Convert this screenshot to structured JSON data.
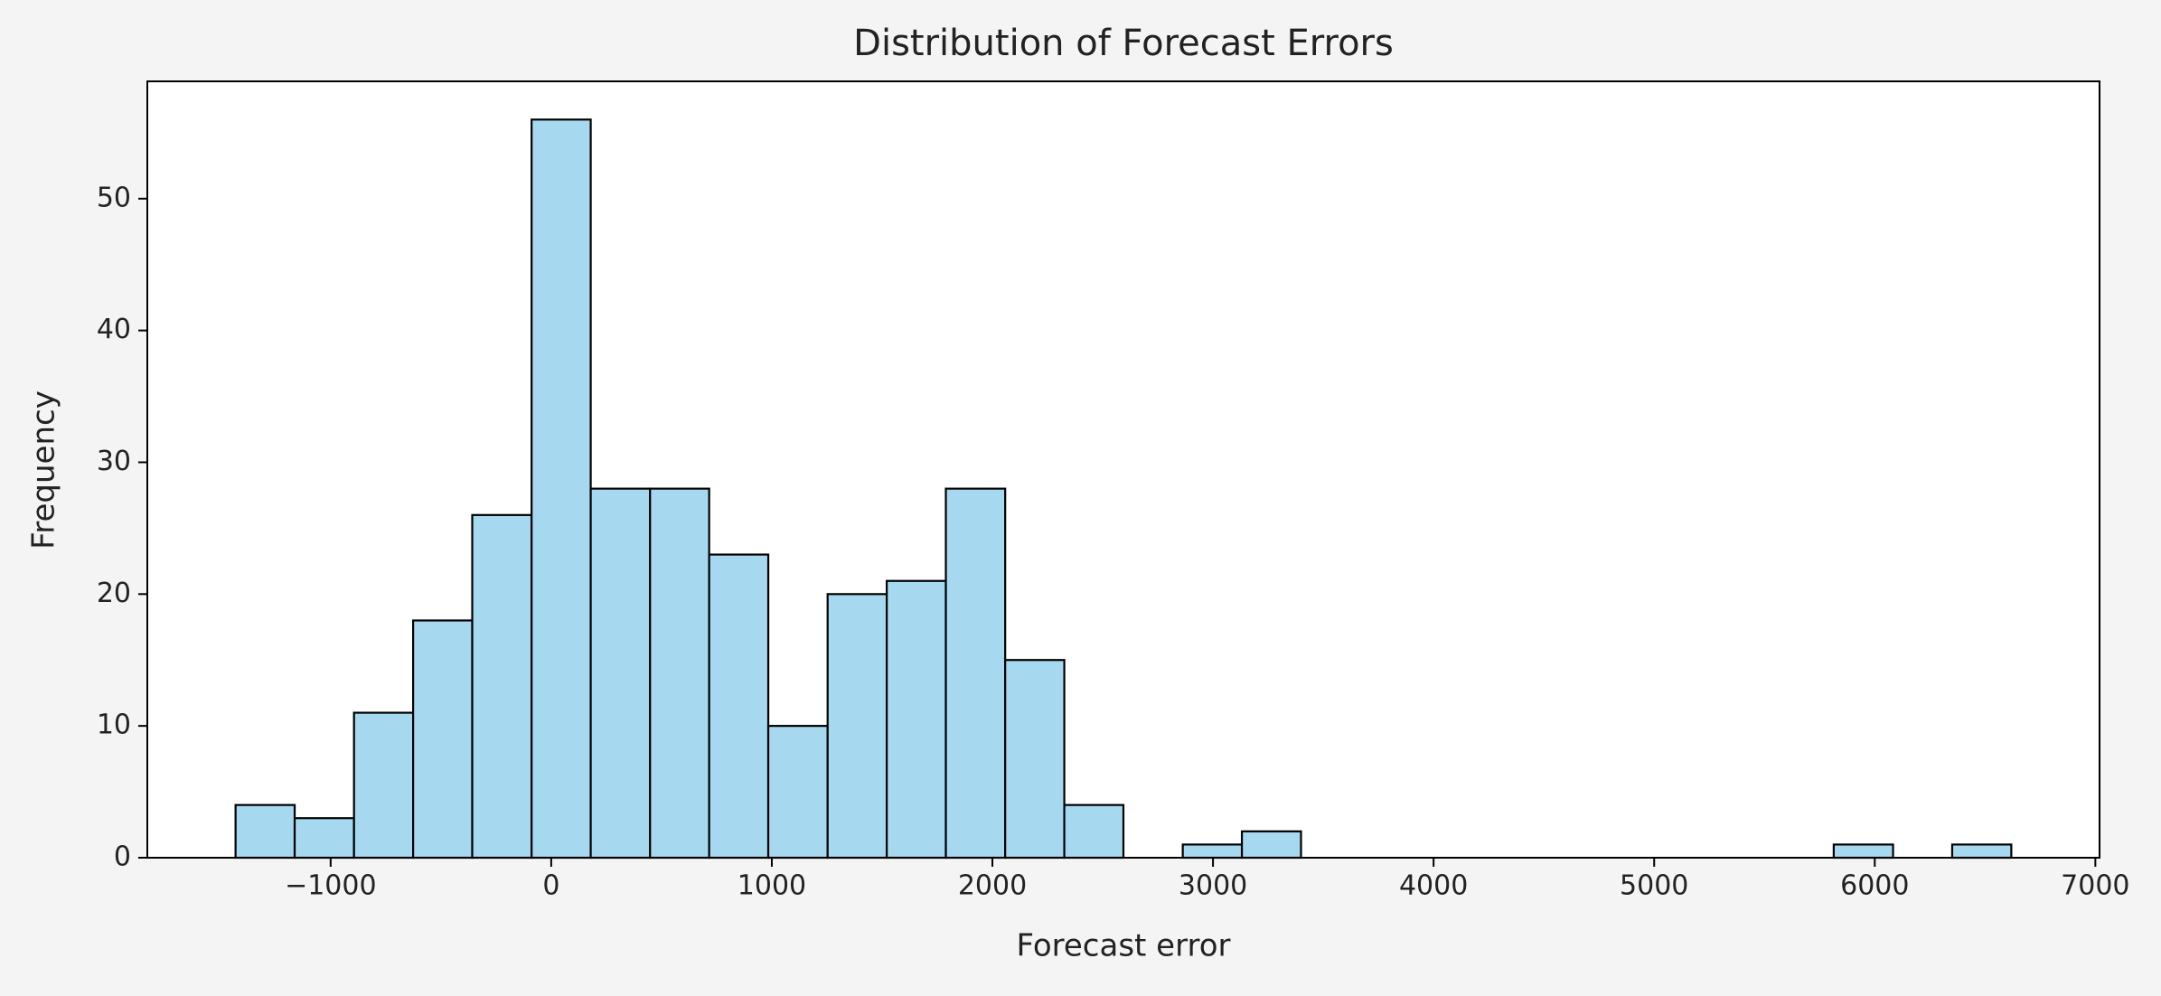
{
  "chart_data": {
    "type": "histogram",
    "title": "Distribution of Forecast Errors",
    "x_label": "Forecast error",
    "y_label": "Frequency",
    "bins": [
      -1431,
      -1163,
      -894,
      -626,
      -358,
      -89,
      179,
      448,
      716,
      984,
      1253,
      1521,
      1789,
      2058,
      2326,
      2594,
      2863,
      3131,
      3399,
      3668,
      3936,
      4204,
      4473,
      4741,
      5009,
      5278,
      5546,
      5814,
      6083,
      6351,
      6619
    ],
    "counts": [
      4,
      3,
      11,
      18,
      26,
      56,
      28,
      28,
      23,
      10,
      20,
      21,
      28,
      15,
      4,
      0,
      1,
      2,
      0,
      0,
      0,
      0,
      0,
      0,
      0,
      0,
      0,
      1,
      0,
      1
    ],
    "color": "#a6d9ef",
    "edgecolor": "#000000",
    "xlim": [
      -1831,
      7019
    ],
    "xticks": [
      {
        "value": -1000,
        "label": "−1000"
      },
      0,
      1000,
      2000,
      3000,
      4000,
      5000,
      6000,
      7000
    ],
    "ylim": [
      0,
      58.9
    ],
    "yticks": [
      0,
      10,
      20,
      30,
      40,
      50
    ],
    "grid": false
  }
}
